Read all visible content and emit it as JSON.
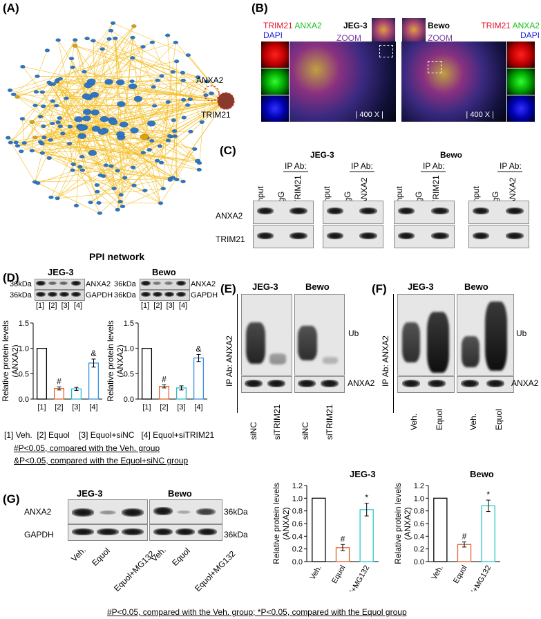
{
  "panel_labels": {
    "a": "(A)",
    "b": "(B)",
    "c": "(C)",
    "d": "(D)",
    "e": "(E)",
    "f": "(F)",
    "g": "(G)"
  },
  "panel_a": {
    "title": "PPI network",
    "node_anxa2": "ANXA2",
    "node_trim21": "TRIM21"
  },
  "panel_b": {
    "left": {
      "cell": "JEG-3",
      "trim21": "TRIM21",
      "anxa2": "ANXA2",
      "dapi": "DAPI",
      "zoom": "ZOOM",
      "mag": "| 400 X |"
    },
    "right": {
      "cell": "Bewo",
      "trim21": "TRIM21",
      "anxa2": "ANXA2",
      "dapi": "DAPI",
      "zoom": "ZOOM",
      "mag": "| 400 X |"
    },
    "colors": {
      "trim21": "#e8102a",
      "anxa2": "#18c21a",
      "dapi": "#2020e0",
      "zoom": "#7b3fa0"
    }
  },
  "panel_c": {
    "cell_left": "JEG-3",
    "cell_right": "Bewo",
    "ip_ab": "IP Ab:",
    "lanes": {
      "input": "Input",
      "igg": "IgG",
      "trim21": "TRIM21",
      "anxa2": "ANXA2"
    },
    "rows": [
      "ANXA2",
      "TRIM21"
    ]
  },
  "panel_d": {
    "cell_left": "JEG-3",
    "cell_right": "Bewo",
    "kda1": "36kDa",
    "kda2": "36kDa",
    "protein1": "ANXA2",
    "protein2": "GAPDH",
    "lanes": [
      "[1]",
      "[2]",
      "[3]",
      "[4]"
    ],
    "ylabel": "Relative protein levels",
    "ylabel2": "(ANXA2)",
    "yticks": [
      "0.0",
      "0.5",
      "1.0",
      "1.5"
    ],
    "legend_items": [
      "[1] Veh.",
      "[2] Equol",
      "[3] Equol+siNC",
      "[4] Equol+siTRIM21"
    ],
    "note1": "#P<0.05, compared with the Veh. group",
    "note2": "&P<0.05, compared with the Equol+siNC group",
    "sig_hash": "#",
    "sig_amp": "&"
  },
  "panel_e": {
    "cell_left": "JEG-3",
    "cell_right": "Bewo",
    "ylabel": "IP Ab: ANXA2",
    "ub": "Ub",
    "anxa2": "ANXA2",
    "lanes": [
      "siNC",
      "siTRIM21",
      "siNC",
      "siTRIM21"
    ]
  },
  "panel_f": {
    "cell_left": "JEG-3",
    "cell_right": "Bewo",
    "ylabel": "IP Ab: ANXA2",
    "ub": "Ub",
    "anxa2": "ANXA2",
    "lanes": [
      "Veh.",
      "Equol",
      "Veh.",
      "Equol"
    ]
  },
  "panel_g": {
    "cell_left": "JEG-3",
    "cell_right": "Bewo",
    "rows": [
      "ANXA2",
      "GAPDH"
    ],
    "kda1": "36kDa",
    "kda2": "36kDa",
    "lanes": [
      "Veh.",
      "Equol",
      "Equol+MG132",
      "Veh.",
      "Equol",
      "Equol+MG132"
    ],
    "ylabel": "Relative protein levels",
    "ylabel2": "(ANXA2)",
    "yticks": [
      "0.0",
      "0.2",
      "0.4",
      "0.6",
      "0.8",
      "1.0",
      "1.2"
    ],
    "sig_hash": "#",
    "sig_star": "*",
    "footnote": "#P<0.05, compared with the Veh. group; *P<0.05, compared with the Equol group"
  },
  "chart_data": [
    {
      "type": "bar",
      "title": "JEG-3",
      "categories": [
        "[1]",
        "[2]",
        "[3]",
        "[4]"
      ],
      "values": [
        1.0,
        0.21,
        0.2,
        0.71
      ],
      "errors": [
        0,
        0.03,
        0.03,
        0.08
      ],
      "ylim": [
        0,
        1.5
      ],
      "ylabel": "Relative protein levels (ANXA2)",
      "colors": [
        "#000000",
        "#e2622a",
        "#2fb8c8",
        "#3a8fe0"
      ]
    },
    {
      "type": "bar",
      "title": "Bewo",
      "categories": [
        "[1]",
        "[2]",
        "[3]",
        "[4]"
      ],
      "values": [
        1.0,
        0.25,
        0.22,
        0.81
      ],
      "errors": [
        0,
        0.03,
        0.04,
        0.07
      ],
      "ylim": [
        0,
        1.5
      ],
      "ylabel": "Relative protein levels (ANXA2)",
      "colors": [
        "#000000",
        "#e2622a",
        "#2fb8c8",
        "#3a8fe0"
      ]
    },
    {
      "type": "bar",
      "title": "JEG-3",
      "categories": [
        "Veh.",
        "Equol",
        "Equol+MG132"
      ],
      "values": [
        1.0,
        0.22,
        0.82
      ],
      "errors": [
        0,
        0.05,
        0.1
      ],
      "ylim": [
        0,
        1.2
      ],
      "ylabel": "Relative protein levels (ANXA2)",
      "colors": [
        "#000000",
        "#e2622a",
        "#2fc8c8"
      ]
    },
    {
      "type": "bar",
      "title": "Bewo",
      "categories": [
        "Veh.",
        "Equol",
        "Equol+MG132"
      ],
      "values": [
        1.0,
        0.27,
        0.88
      ],
      "errors": [
        0,
        0.04,
        0.09
      ],
      "ylim": [
        0,
        1.2
      ],
      "ylabel": "Relative protein levels (ANXA2)",
      "colors": [
        "#000000",
        "#e2622a",
        "#2fc8c8"
      ]
    }
  ]
}
